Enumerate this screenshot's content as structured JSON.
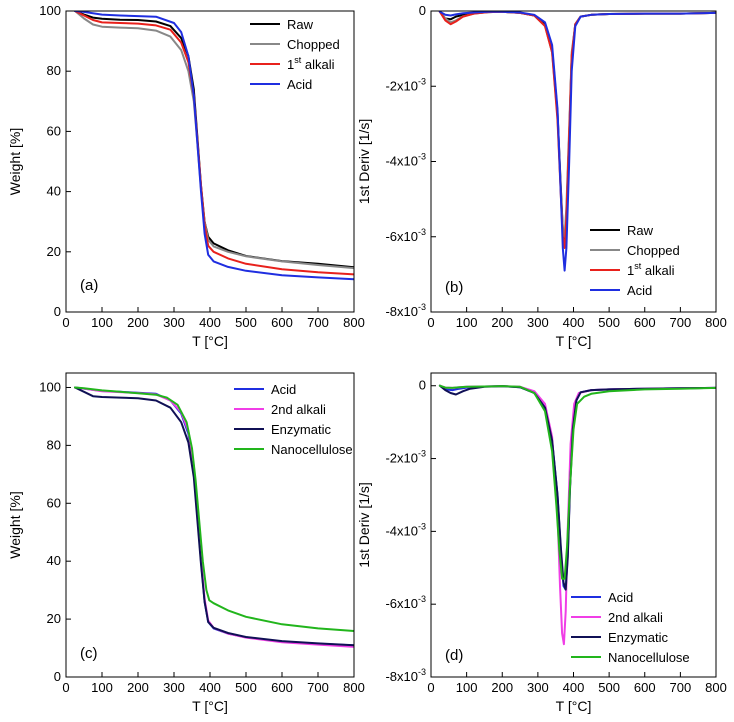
{
  "chart_data": [
    {
      "type": "line",
      "panel_label": "(a)",
      "xlabel": "T [°C]",
      "ylabel": "Weight [%]",
      "xlim": [
        0,
        800
      ],
      "ylim": [
        0,
        100
      ],
      "xticks": [
        0,
        100,
        200,
        300,
        400,
        500,
        600,
        700,
        800
      ],
      "yticks": [
        0,
        20,
        40,
        60,
        80,
        100
      ],
      "ytick_labels": [
        "0",
        "20",
        "40",
        "60",
        "80",
        "100"
      ],
      "legend_position": "top-right",
      "series": [
        {
          "name": "Raw",
          "color": "#000000",
          "x": [
            25,
            50,
            75,
            100,
            150,
            200,
            250,
            290,
            320,
            340,
            355,
            365,
            375,
            385,
            395,
            410,
            450,
            500,
            600,
            700,
            800
          ],
          "y": [
            100,
            98.8,
            97.8,
            97.4,
            97.1,
            97,
            96.5,
            95,
            91,
            85,
            74,
            58,
            42,
            30,
            25,
            22.8,
            20.5,
            18.6,
            16.9,
            16,
            14.9
          ]
        },
        {
          "name": "Chopped",
          "color": "#888888",
          "x": [
            25,
            50,
            75,
            100,
            150,
            200,
            250,
            290,
            320,
            340,
            355,
            365,
            375,
            385,
            395,
            410,
            450,
            500,
            600,
            700,
            800
          ],
          "y": [
            100,
            97.5,
            95.5,
            94.8,
            94.5,
            94.3,
            93.5,
            91.5,
            87,
            80,
            70,
            56,
            41,
            30,
            24,
            21.8,
            20,
            18.5,
            16.8,
            15.6,
            14.6
          ]
        },
        {
          "name": "1st alkali",
          "color": "#e8211c",
          "x": [
            25,
            50,
            75,
            100,
            150,
            200,
            250,
            290,
            320,
            340,
            355,
            365,
            375,
            385,
            395,
            410,
            450,
            500,
            600,
            700,
            800
          ],
          "y": [
            100,
            98.5,
            97,
            96.2,
            96,
            95.8,
            95.2,
            93.8,
            89.5,
            83,
            72,
            57,
            42,
            29,
            22,
            20,
            17.8,
            16,
            14.2,
            13.2,
            12.5
          ]
        },
        {
          "name": "Acid",
          "color": "#1f2ee0",
          "x": [
            25,
            50,
            100,
            150,
            200,
            250,
            300,
            320,
            340,
            355,
            365,
            375,
            385,
            395,
            410,
            450,
            500,
            600,
            700,
            800
          ],
          "y": [
            100,
            99.7,
            98.8,
            98.5,
            98.3,
            98.1,
            96,
            93,
            85,
            72,
            56,
            40,
            26,
            19,
            16.8,
            15,
            13.7,
            12.2,
            11.5,
            10.9
          ]
        }
      ]
    },
    {
      "type": "line",
      "panel_label": "(b)",
      "xlabel": "T [°C]",
      "ylabel": "1st Deriv [1/s]",
      "xlim": [
        0,
        800
      ],
      "ylim": [
        -0.008,
        0
      ],
      "xticks": [
        0,
        100,
        200,
        300,
        400,
        500,
        600,
        700,
        800
      ],
      "yticks": [
        0,
        -0.002,
        -0.004,
        -0.006,
        -0.008
      ],
      "ytick_labels": [
        {
          "base": "0",
          "exp": ""
        },
        {
          "base": "-2x10",
          "exp": "-3"
        },
        {
          "base": "-4x10",
          "exp": "-3"
        },
        {
          "base": "-6x10",
          "exp": "-3"
        },
        {
          "base": "-8x10",
          "exp": "-3"
        }
      ],
      "legend_position": "bottom-right",
      "series": [
        {
          "name": "Raw",
          "color": "#000000",
          "x": [
            25,
            40,
            55,
            70,
            90,
            120,
            160,
            200,
            250,
            290,
            320,
            340,
            355,
            365,
            370,
            375,
            380,
            388,
            395,
            405,
            420,
            450,
            500,
            600,
            700,
            800
          ],
          "y": [
            -2e-05,
            -0.0002,
            -0.00022,
            -0.00015,
            -0.0001,
            -6e-05,
            -3e-05,
            -2e-05,
            -5e-05,
            -0.00012,
            -0.00035,
            -0.001,
            -0.0027,
            -0.0048,
            -0.0058,
            -0.0062,
            -0.0054,
            -0.0033,
            -0.0012,
            -0.00035,
            -0.00015,
            -0.0001,
            -8e-05,
            -7e-05,
            -7e-05,
            -5e-05
          ]
        },
        {
          "name": "Chopped",
          "color": "#888888",
          "x": [
            25,
            40,
            55,
            70,
            90,
            120,
            160,
            200,
            250,
            290,
            320,
            340,
            355,
            365,
            370,
            375,
            380,
            388,
            395,
            405,
            420,
            450,
            500,
            600,
            700,
            800
          ],
          "y": [
            -2e-05,
            -0.0002,
            -0.0003,
            -0.00025,
            -0.00014,
            -7e-05,
            -3e-05,
            -2e-05,
            -5e-05,
            -0.00012,
            -0.0004,
            -0.0011,
            -0.0028,
            -0.0049,
            -0.0058,
            -0.006,
            -0.0052,
            -0.0031,
            -0.0011,
            -0.00035,
            -0.00015,
            -0.0001,
            -8e-05,
            -7e-05,
            -7e-05,
            -5e-05
          ]
        },
        {
          "name": "1st alkali",
          "color": "#e8211c",
          "x": [
            25,
            40,
            55,
            70,
            90,
            120,
            160,
            200,
            250,
            290,
            320,
            340,
            355,
            365,
            370,
            375,
            380,
            388,
            395,
            405,
            420,
            450,
            500,
            600,
            700,
            800
          ],
          "y": [
            -2e-05,
            -0.00025,
            -0.00035,
            -0.00028,
            -0.00015,
            -7e-05,
            -3e-05,
            -2e-05,
            -5e-05,
            -0.00012,
            -0.0004,
            -0.0011,
            -0.0029,
            -0.005,
            -0.006,
            -0.0063,
            -0.0055,
            -0.0033,
            -0.0012,
            -0.00035,
            -0.00015,
            -0.0001,
            -8e-05,
            -7e-05,
            -7e-05,
            -5e-05
          ]
        },
        {
          "name": "Acid",
          "color": "#1f2ee0",
          "x": [
            25,
            40,
            55,
            70,
            90,
            120,
            160,
            200,
            250,
            290,
            320,
            340,
            355,
            365,
            370,
            375,
            380,
            388,
            395,
            405,
            420,
            450,
            500,
            600,
            700,
            800
          ],
          "y": [
            -2e-05,
            -0.0001,
            -0.00012,
            -9e-05,
            -6e-05,
            -4e-05,
            -2e-05,
            -2e-05,
            -4e-05,
            -0.0001,
            -0.0003,
            -0.0009,
            -0.0026,
            -0.005,
            -0.0063,
            -0.0069,
            -0.0063,
            -0.004,
            -0.0016,
            -0.0004,
            -0.00015,
            -0.0001,
            -8e-05,
            -7e-05,
            -7e-05,
            -5e-05
          ]
        }
      ]
    },
    {
      "type": "line",
      "panel_label": "(c)",
      "xlabel": "T [°C]",
      "ylabel": "Weight [%]",
      "xlim": [
        0,
        800
      ],
      "ylim": [
        0,
        105
      ],
      "xticks": [
        0,
        100,
        200,
        300,
        400,
        500,
        600,
        700,
        800
      ],
      "yticks": [
        0,
        20,
        40,
        60,
        80,
        100
      ],
      "ytick_labels": [
        "0",
        "20",
        "40",
        "60",
        "80",
        "100"
      ],
      "legend_position": "top-right",
      "series": [
        {
          "name": "Acid",
          "color": "#1f2ee0",
          "x": [
            25,
            50,
            100,
            150,
            200,
            250,
            290,
            320,
            340,
            355,
            365,
            375,
            385,
            395,
            410,
            450,
            500,
            600,
            700,
            800
          ],
          "y": [
            100,
            99.6,
            98.8,
            98.5,
            98.2,
            97.8,
            95.5,
            91,
            84,
            71,
            56,
            40,
            26,
            19,
            16.8,
            15,
            13.7,
            12.2,
            11.5,
            10.9
          ]
        },
        {
          "name": "2nd alkali",
          "color": "#f03ee6",
          "x": [
            25,
            50,
            100,
            150,
            200,
            250,
            290,
            320,
            340,
            355,
            365,
            375,
            385,
            395,
            410,
            450,
            500,
            600,
            700,
            800
          ],
          "y": [
            100,
            99.6,
            98.7,
            98.4,
            98.1,
            97.6,
            95.5,
            91.5,
            85,
            73,
            58,
            41,
            27,
            19.5,
            17,
            15,
            13.6,
            12,
            11.2,
            10.4
          ]
        },
        {
          "name": "Enzymatic",
          "color": "#101055",
          "x": [
            25,
            50,
            75,
            100,
            150,
            200,
            250,
            290,
            320,
            340,
            355,
            365,
            375,
            385,
            395,
            410,
            450,
            500,
            600,
            700,
            800
          ],
          "y": [
            100,
            98.5,
            97,
            96.7,
            96.5,
            96.3,
            95.5,
            93,
            88,
            81,
            69,
            54,
            39,
            26,
            19,
            17,
            15.2,
            13.8,
            12.4,
            11.6,
            11
          ]
        },
        {
          "name": "Nanocellulose",
          "color": "#22b51c",
          "x": [
            25,
            50,
            100,
            150,
            200,
            250,
            280,
            310,
            335,
            350,
            360,
            370,
            380,
            390,
            398,
            410,
            450,
            500,
            600,
            700,
            800
          ],
          "y": [
            100,
            99.7,
            99,
            98.5,
            98,
            97.5,
            96.5,
            94,
            88,
            79,
            68,
            54,
            40,
            30,
            26.5,
            25.5,
            23,
            20.8,
            18.2,
            16.8,
            15.9
          ]
        }
      ]
    },
    {
      "type": "line",
      "panel_label": "(d)",
      "xlabel": "T [°C]",
      "ylabel": "1st Deriv [1/s]",
      "xlim": [
        0,
        800
      ],
      "ylim": [
        -0.008,
        0.00035
      ],
      "xticks": [
        0,
        100,
        200,
        300,
        400,
        500,
        600,
        700,
        800
      ],
      "yticks": [
        0,
        -0.002,
        -0.004,
        -0.006,
        -0.008
      ],
      "ytick_labels": [
        {
          "base": "0",
          "exp": ""
        },
        {
          "base": "-2x10",
          "exp": "-3"
        },
        {
          "base": "-4x10",
          "exp": "-3"
        },
        {
          "base": "-6x10",
          "exp": "-3"
        },
        {
          "base": "-8x10",
          "exp": "-3"
        }
      ],
      "legend_position": "bottom-right",
      "series": [
        {
          "name": "Acid",
          "color": "#1f2ee0",
          "x": [
            25,
            40,
            60,
            80,
            100,
            150,
            200,
            250,
            290,
            320,
            340,
            355,
            365,
            372,
            378,
            384,
            390,
            398,
            408,
            420,
            450,
            500,
            600,
            700,
            800
          ],
          "y": [
            0,
            -0.0001,
            -0.00012,
            -8e-05,
            -5e-05,
            -2e-05,
            -1e-05,
            -4e-05,
            -0.0002,
            -0.0006,
            -0.0015,
            -0.003,
            -0.0046,
            -0.0055,
            -0.0056,
            -0.0046,
            -0.0028,
            -0.0012,
            -0.0004,
            -0.00018,
            -0.00012,
            -0.0001,
            -8e-05,
            -7e-05,
            -6e-05
          ]
        },
        {
          "name": "2nd alkali",
          "color": "#f03ee6",
          "x": [
            25,
            40,
            60,
            80,
            100,
            150,
            200,
            250,
            290,
            320,
            340,
            355,
            362,
            368,
            373,
            378,
            384,
            392,
            402,
            415,
            450,
            500,
            600,
            700,
            800
          ],
          "y": [
            0,
            -5e-05,
            -6e-05,
            -4e-05,
            -3e-05,
            -2e-05,
            -1e-05,
            -3e-05,
            -0.00015,
            -0.0005,
            -0.0014,
            -0.0035,
            -0.0055,
            -0.0068,
            -0.0071,
            -0.0062,
            -0.0039,
            -0.0016,
            -0.0005,
            -0.0002,
            -0.00012,
            -0.0001,
            -8e-05,
            -7e-05,
            -6e-05
          ]
        },
        {
          "name": "Enzymatic",
          "color": "#101055",
          "x": [
            25,
            40,
            55,
            70,
            90,
            110,
            150,
            200,
            250,
            290,
            320,
            340,
            355,
            365,
            372,
            378,
            384,
            390,
            398,
            408,
            420,
            450,
            500,
            600,
            700,
            800
          ],
          "y": [
            0,
            -0.00012,
            -0.0002,
            -0.00024,
            -0.00015,
            -8e-05,
            -3e-05,
            -1e-05,
            -4e-05,
            -0.0002,
            -0.0006,
            -0.0015,
            -0.003,
            -0.0045,
            -0.0054,
            -0.0056,
            -0.0047,
            -0.0029,
            -0.0012,
            -0.0004,
            -0.00018,
            -0.00012,
            -0.0001,
            -8e-05,
            -7e-05,
            -6e-05
          ]
        },
        {
          "name": "Nanocellulose",
          "color": "#22b51c",
          "x": [
            25,
            40,
            60,
            80,
            100,
            150,
            200,
            250,
            290,
            320,
            340,
            352,
            360,
            368,
            375,
            382,
            390,
            400,
            410,
            430,
            450,
            500,
            600,
            700,
            800
          ],
          "y": [
            0,
            -5e-05,
            -6e-05,
            -4e-05,
            -3e-05,
            -2e-05,
            -1e-05,
            -3e-05,
            -0.0002,
            -0.0007,
            -0.0018,
            -0.0033,
            -0.0045,
            -0.0053,
            -0.0053,
            -0.0044,
            -0.0028,
            -0.0012,
            -0.0005,
            -0.0003,
            -0.00022,
            -0.00015,
            -0.0001,
            -8e-05,
            -6e-05
          ]
        }
      ]
    }
  ]
}
